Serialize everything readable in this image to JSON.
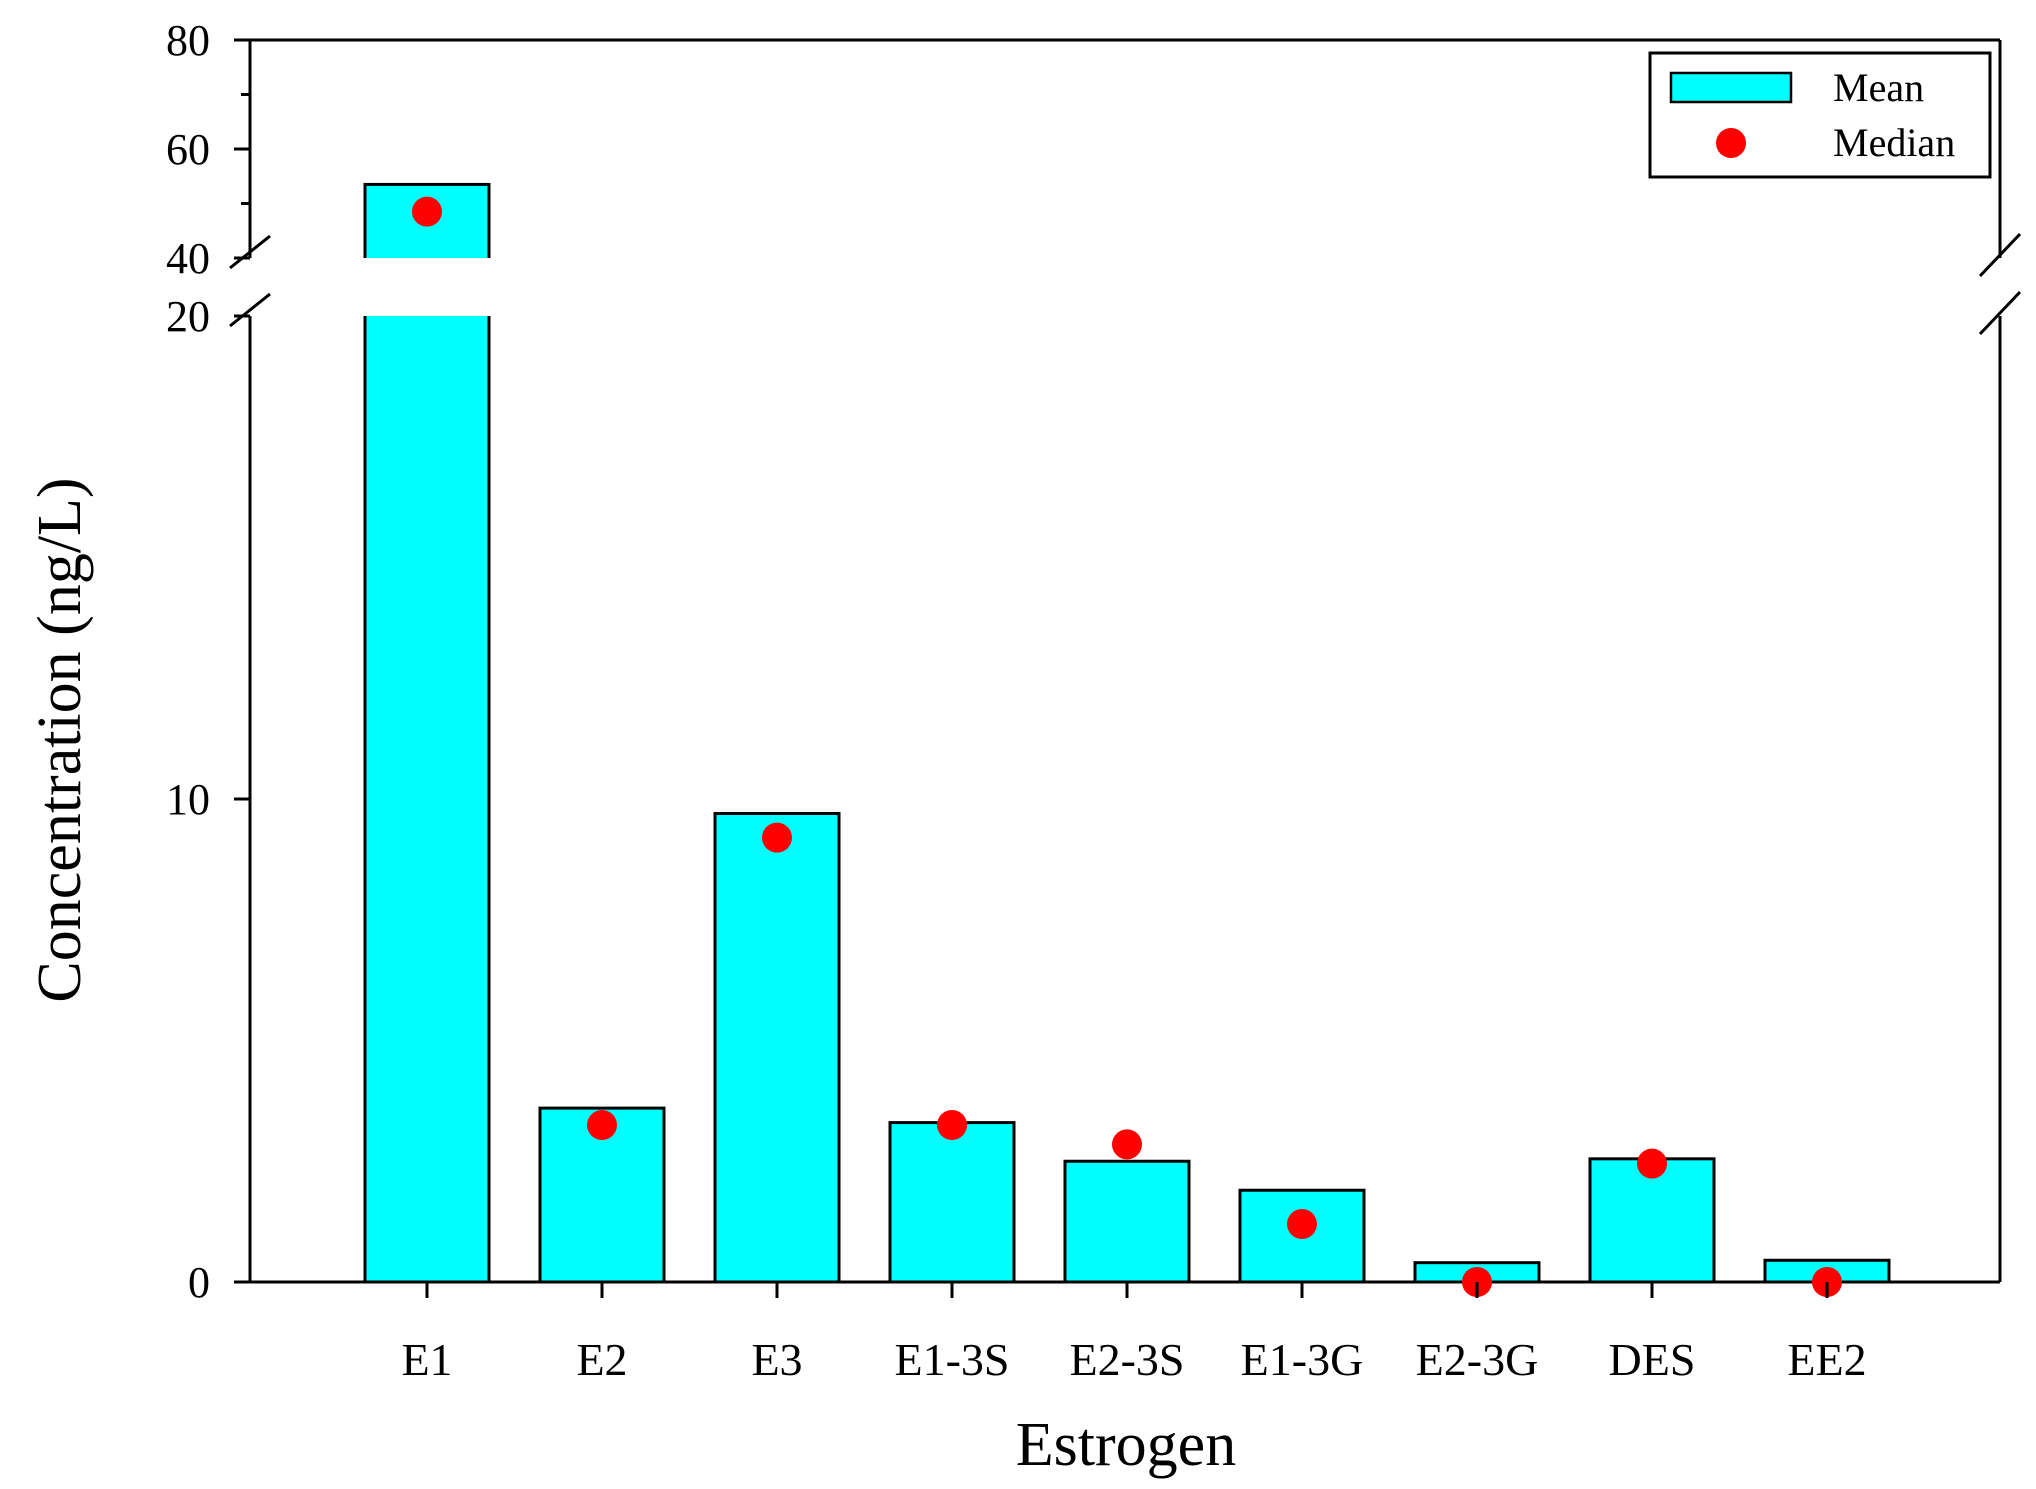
{
  "colors": {
    "bar_fill": "#00ffff",
    "median_marker": "#ff0000",
    "axis": "#000000",
    "background": "#ffffff"
  },
  "chart_data": {
    "type": "bar",
    "title": "",
    "xlabel": "Estrogen",
    "ylabel": "Concentration (ng/L)",
    "categories": [
      "E1",
      "E2",
      "E3",
      "E1-3S",
      "E2-3S",
      "E1-3G",
      "E2-3G",
      "DES",
      "EE2"
    ],
    "series": [
      {
        "name": "Mean",
        "marker": "bar",
        "values": [
          53.5,
          3.6,
          9.7,
          3.3,
          2.5,
          1.9,
          0.4,
          2.55,
          0.45
        ]
      },
      {
        "name": "Median",
        "marker": "circle",
        "values": [
          48.5,
          3.25,
          9.2,
          3.25,
          2.85,
          1.2,
          0.0,
          2.45,
          0.0
        ]
      }
    ],
    "y_axis_break": {
      "lower_segment": {
        "ylim": [
          0,
          20
        ],
        "ticks": [
          "0",
          "10",
          "20"
        ],
        "tick_values": [
          0,
          10,
          20
        ]
      },
      "upper_segment": {
        "ylim": [
          40,
          80
        ],
        "ticks": [
          "40",
          "60",
          "80"
        ],
        "tick_values": [
          40,
          60,
          80
        ]
      }
    },
    "legend": {
      "placement": "top-right",
      "entries": [
        "Mean",
        "Median"
      ]
    },
    "grid": false
  }
}
